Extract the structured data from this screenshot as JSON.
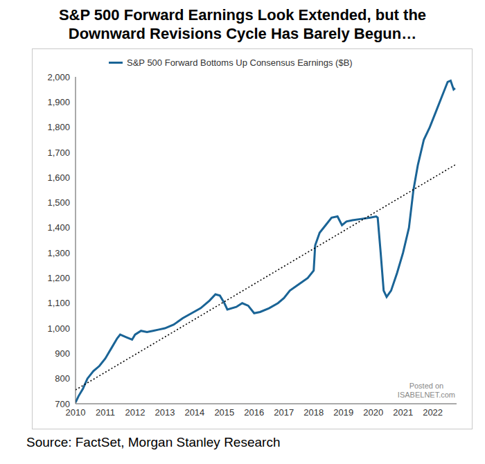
{
  "chart_data": {
    "type": "line",
    "title": "S&P 500 Forward Earnings Look Extended, but the Downward Revisions Cycle Has Barely Begun…",
    "source": "Source: FactSet, Morgan Stanley Research",
    "annotations": [
      "Posted on",
      "ISABELNET.com"
    ],
    "legend": "upper left",
    "grid": false,
    "xlim": [
      2010,
      2022.8
    ],
    "xticks": [
      2010,
      2011,
      2012,
      2013,
      2014,
      2015,
      2016,
      2017,
      2018,
      2019,
      2020,
      2021,
      2022
    ],
    "ylim": [
      700,
      2000
    ],
    "yticks": [
      700,
      800,
      900,
      {
        "value": 1000,
        "label": "1,000"
      },
      {
        "value": 1100,
        "label": "1,100"
      },
      {
        "value": 1200,
        "label": "1,200"
      },
      {
        "value": 1300,
        "label": "1,300"
      },
      {
        "value": 1400,
        "label": "1,400"
      },
      {
        "value": 1500,
        "label": "1,500"
      },
      {
        "value": 1600,
        "label": "1,600"
      },
      {
        "value": 1700,
        "label": "1,700"
      },
      {
        "value": 1800,
        "label": "1,800"
      },
      {
        "value": 1900,
        "label": "1,900"
      },
      {
        "value": 2000,
        "label": "2,000"
      }
    ],
    "series": [
      {
        "name": "S&P 500 Forward Bottoms Up Consensus Earnings ($B)",
        "color": "#1a6496",
        "line_style": "solid",
        "x": [
          2010.0,
          2010.1,
          2010.25,
          2010.4,
          2010.6,
          2010.8,
          2011.0,
          2011.2,
          2011.4,
          2011.5,
          2011.7,
          2011.9,
          2012.0,
          2012.2,
          2012.4,
          2012.6,
          2012.8,
          2013.0,
          2013.3,
          2013.6,
          2013.9,
          2014.2,
          2014.5,
          2014.7,
          2014.85,
          2015.0,
          2015.1,
          2015.4,
          2015.6,
          2015.8,
          2016.0,
          2016.2,
          2016.5,
          2016.8,
          2017.0,
          2017.2,
          2017.5,
          2017.8,
          2018.0,
          2018.05,
          2018.2,
          2018.4,
          2018.6,
          2018.8,
          2018.95,
          2019.1,
          2019.3,
          2019.6,
          2019.9,
          2020.1,
          2020.15,
          2020.25,
          2020.35,
          2020.45,
          2020.6,
          2020.8,
          2021.0,
          2021.2,
          2021.35,
          2021.5,
          2021.7,
          2021.9,
          2022.1,
          2022.3,
          2022.5,
          2022.6,
          2022.7,
          2022.75
        ],
        "values": [
          705,
          730,
          760,
          800,
          830,
          850,
          880,
          920,
          960,
          975,
          965,
          955,
          975,
          990,
          985,
          990,
          995,
          1000,
          1015,
          1040,
          1060,
          1080,
          1110,
          1135,
          1130,
          1100,
          1075,
          1085,
          1100,
          1090,
          1060,
          1065,
          1080,
          1100,
          1120,
          1150,
          1175,
          1200,
          1230,
          1330,
          1380,
          1410,
          1440,
          1445,
          1410,
          1425,
          1430,
          1435,
          1440,
          1445,
          1440,
          1300,
          1150,
          1125,
          1150,
          1220,
          1300,
          1400,
          1550,
          1650,
          1750,
          1800,
          1860,
          1920,
          1980,
          1985,
          1950,
          1955
        ]
      },
      {
        "color": "#000000",
        "line_style": "dotted",
        "x": [
          2010,
          2022.75
        ],
        "values": [
          755,
          1650
        ]
      }
    ]
  }
}
